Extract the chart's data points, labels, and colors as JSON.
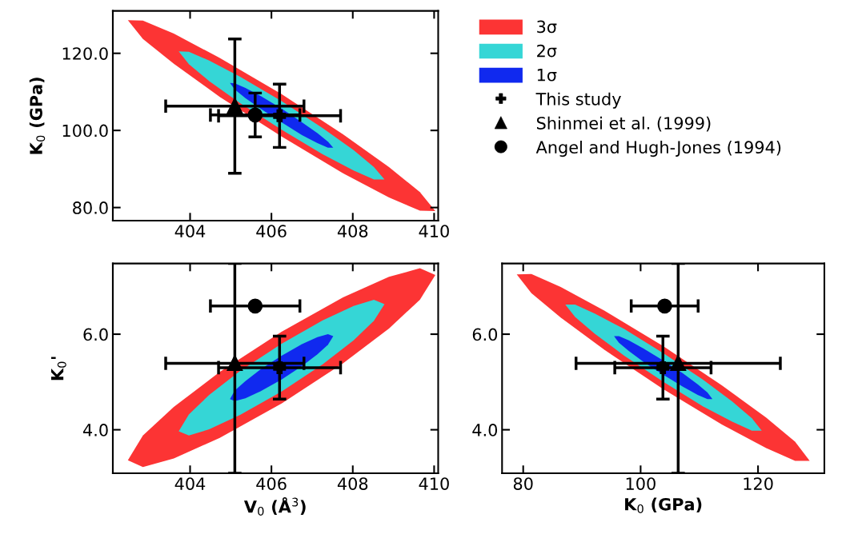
{
  "chart_data": [
    {
      "type": "area",
      "ylabel": "K$_{0}$ (GPa)",
      "xlim": [
        402.1,
        410.1
      ],
      "ylim": [
        76.6,
        131.0
      ],
      "xticks": [
        404,
        406,
        408,
        410
      ],
      "yticks": [
        {
          "value": 80,
          "label": "80.0"
        },
        {
          "value": 100,
          "label": "100.0"
        },
        {
          "value": 120,
          "label": "120.0"
        }
      ],
      "legend": "right",
      "series": [
        {
          "name": "3σ",
          "color": "#fc3434",
          "x": [
            402.47,
            402.84,
            403.6,
            404.73,
            406.25,
            407.76,
            408.89,
            409.65,
            410.03,
            409.65,
            408.89,
            407.76,
            406.25,
            404.73,
            403.6,
            402.84
          ],
          "values": [
            128.6,
            128.5,
            125.1,
            118.8,
            109.4,
            99.0,
            90.5,
            84.0,
            79.1,
            79.2,
            82.6,
            88.9,
            98.4,
            108.7,
            117.3,
            123.7
          ]
        },
        {
          "name": "2σ",
          "color": "#35d6d6",
          "x": [
            403.72,
            403.97,
            404.47,
            405.23,
            406.25,
            407.26,
            408.02,
            408.52,
            408.78,
            408.52,
            408.02,
            407.26,
            406.25,
            405.23,
            404.47,
            403.97
          ],
          "values": [
            120.5,
            120.4,
            118.1,
            113.9,
            107.6,
            100.6,
            94.9,
            90.5,
            87.3,
            87.3,
            89.6,
            93.8,
            100.2,
            107.1,
            112.8,
            117.2
          ]
        },
        {
          "name": "1σ",
          "color": "#1029ef",
          "x": [
            404.98,
            405.1,
            405.36,
            405.74,
            406.25,
            406.75,
            407.13,
            407.39,
            407.52,
            407.39,
            407.13,
            406.75,
            406.25,
            405.74,
            405.36,
            405.1
          ],
          "values": [
            112.3,
            112.2,
            111.0,
            108.9,
            105.7,
            102.1,
            99.3,
            97.1,
            95.5,
            95.5,
            96.7,
            98.8,
            102.1,
            105.6,
            108.4,
            110.6
          ]
        },
        {
          "type": "scatter",
          "name": "This study",
          "color": "#000000",
          "marker": "cross",
          "x": [
            406.2
          ],
          "values": [
            103.8
          ],
          "errors": [
            8.2
          ],
          "xerrors": [
            1.5
          ]
        },
        {
          "type": "scatter",
          "name": "Shinmei et al. (1999)",
          "color": "#000000",
          "marker": "triangle",
          "x": [
            405.1
          ],
          "values": [
            106.3
          ],
          "errors": [
            17.4
          ],
          "xerrors": [
            1.7
          ]
        },
        {
          "type": "scatter",
          "name": "Angel and Hugh-Jones (1994)",
          "color": "#000000",
          "marker": "circle",
          "x": [
            405.6
          ],
          "values": [
            104.0
          ],
          "errors": [
            5.7
          ],
          "xerrors": [
            1.1
          ]
        }
      ]
    },
    {
      "type": "area",
      "xlabel": "V$_{0}$ (Å$^{3}$)",
      "ylabel": "K$_{0}$'",
      "xlim": [
        402.1,
        410.1
      ],
      "ylim": [
        3.09,
        7.48
      ],
      "xticks": [
        404,
        406,
        408,
        410
      ],
      "yticks": [
        {
          "value": 4,
          "label": "4.0"
        },
        {
          "value": 6,
          "label": "6.0"
        }
      ],
      "series": [
        {
          "color": "#fc3434",
          "x": [
            402.47,
            402.84,
            403.6,
            404.73,
            406.25,
            407.76,
            408.89,
            409.65,
            410.03,
            409.65,
            408.89,
            407.76,
            406.25,
            404.73,
            403.6,
            402.84
          ],
          "values": [
            3.36,
            3.88,
            4.48,
            5.21,
            6.05,
            6.77,
            7.2,
            7.38,
            7.24,
            6.72,
            6.12,
            5.39,
            4.55,
            3.83,
            3.4,
            3.22
          ]
        },
        {
          "color": "#35d6d6",
          "x": [
            403.72,
            403.97,
            404.47,
            405.23,
            406.25,
            407.26,
            408.02,
            408.52,
            408.78,
            408.52,
            408.02,
            407.26,
            406.25,
            405.23,
            404.47,
            403.97
          ],
          "values": [
            3.97,
            4.32,
            4.73,
            5.23,
            5.8,
            6.29,
            6.59,
            6.72,
            6.63,
            6.28,
            5.87,
            5.37,
            4.8,
            4.31,
            4.01,
            3.88
          ]
        },
        {
          "color": "#1029ef",
          "x": [
            404.98,
            405.1,
            405.36,
            405.74,
            406.25,
            406.75,
            407.13,
            407.39,
            407.52,
            407.39,
            407.13,
            406.75,
            406.25,
            405.74,
            405.36,
            405.1
          ],
          "values": [
            4.64,
            4.82,
            5.02,
            5.27,
            5.55,
            5.79,
            5.94,
            6.0,
            5.96,
            5.78,
            5.58,
            5.33,
            5.05,
            4.81,
            4.66,
            4.6
          ]
        },
        {
          "type": "scatter",
          "color": "#000000",
          "marker": "cross",
          "x": [
            406.2
          ],
          "values": [
            5.3
          ],
          "errors": [
            0.66
          ],
          "xerrors": [
            1.5
          ]
        },
        {
          "type": "scatter",
          "color": "#000000",
          "marker": "triangle",
          "x": [
            405.1
          ],
          "values": [
            5.39
          ],
          "errors": [
            [
              3.09,
              7.48
            ]
          ],
          "xerrors": [
            1.7
          ]
        },
        {
          "type": "scatter",
          "color": "#000000",
          "marker": "circle",
          "x": [
            405.6
          ],
          "values": [
            6.59
          ],
          "errors": [
            null
          ],
          "xerrors": [
            1.1
          ]
        }
      ]
    },
    {
      "type": "area",
      "xlabel": "K$_{0}$ (GPa)",
      "xlim": [
        76.4,
        131.3
      ],
      "ylim": [
        3.09,
        7.48
      ],
      "xticks": [
        80,
        100,
        120
      ],
      "yticks": [
        {
          "value": 4,
          "label": "4.0"
        },
        {
          "value": 6,
          "label": "6.0"
        }
      ],
      "series": [
        {
          "color": "#fc3434",
          "x": [
            78.9,
            81.4,
            86.39,
            93.87,
            103.85,
            113.83,
            121.32,
            126.31,
            128.8,
            126.31,
            121.32,
            113.83,
            103.85,
            93.87,
            86.39,
            81.4
          ],
          "values": [
            7.25,
            7.26,
            6.99,
            6.49,
            5.75,
            4.93,
            4.26,
            3.75,
            3.35,
            3.35,
            3.62,
            4.11,
            4.85,
            5.67,
            6.35,
            6.86
          ]
        },
        {
          "color": "#35d6d6",
          "x": [
            87.17,
            88.84,
            92.19,
            97.21,
            103.9,
            110.59,
            115.61,
            118.96,
            120.63,
            118.96,
            115.61,
            110.59,
            103.9,
            97.21,
            92.19,
            88.84
          ],
          "values": [
            6.62,
            6.62,
            6.43,
            6.11,
            5.6,
            5.05,
            4.59,
            4.24,
            3.98,
            3.98,
            4.17,
            4.49,
            5.0,
            5.55,
            6.01,
            6.36
          ]
        },
        {
          "color": "#1029ef",
          "x": [
            95.47,
            96.31,
            97.98,
            100.5,
            103.85,
            107.2,
            109.72,
            111.39,
            112.23,
            111.39,
            109.72,
            107.2,
            103.85,
            100.5,
            97.98,
            96.31
          ],
          "values": [
            5.96,
            5.96,
            5.87,
            5.7,
            5.45,
            5.18,
            4.95,
            4.78,
            4.64,
            4.64,
            4.73,
            4.9,
            5.15,
            5.42,
            5.65,
            5.82
          ]
        },
        {
          "type": "scatter",
          "color": "#000000",
          "marker": "cross",
          "x": [
            103.8
          ],
          "values": [
            5.3
          ],
          "errors": [
            0.66
          ],
          "xerrors": [
            8.2
          ]
        },
        {
          "type": "scatter",
          "color": "#000000",
          "marker": "triangle",
          "x": [
            106.4
          ],
          "values": [
            5.39
          ],
          "errors": [
            [
              3.09,
              7.48
            ]
          ],
          "xerrors": [
            17.4
          ]
        },
        {
          "type": "scatter",
          "color": "#000000",
          "marker": "circle",
          "x": [
            104.1
          ],
          "values": [
            6.59
          ],
          "errors": [
            null
          ],
          "xerrors": [
            5.7
          ]
        }
      ]
    }
  ]
}
